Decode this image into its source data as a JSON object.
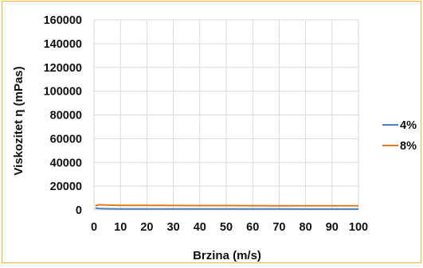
{
  "chart_data": {
    "type": "line",
    "title": "",
    "xlabel": "Brzina (m/s)",
    "ylabel": "Viskozitet η (mPas)",
    "xlim": [
      0,
      100
    ],
    "ylim": [
      0,
      160000
    ],
    "xticks": [
      0,
      10,
      20,
      30,
      40,
      50,
      60,
      70,
      80,
      90,
      100
    ],
    "yticks": [
      0,
      20000,
      40000,
      60000,
      80000,
      100000,
      120000,
      140000,
      160000
    ],
    "grid": true,
    "legend_position": "right",
    "series": [
      {
        "name": "4%",
        "color": "#4f81bd",
        "x": [
          0.5,
          2,
          5,
          10,
          20,
          30,
          40,
          50,
          60,
          70,
          80,
          90,
          100
        ],
        "y": [
          1600,
          1200,
          1000,
          900,
          850,
          820,
          800,
          790,
          780,
          770,
          760,
          750,
          740
        ]
      },
      {
        "name": "8%",
        "color": "#e07b22",
        "x": [
          0.5,
          2,
          5,
          10,
          20,
          30,
          40,
          50,
          60,
          70,
          80,
          90,
          100
        ],
        "y": [
          3600,
          4400,
          4100,
          3900,
          3800,
          3750,
          3700,
          3650,
          3600,
          3560,
          3520,
          3480,
          3450
        ]
      }
    ]
  }
}
